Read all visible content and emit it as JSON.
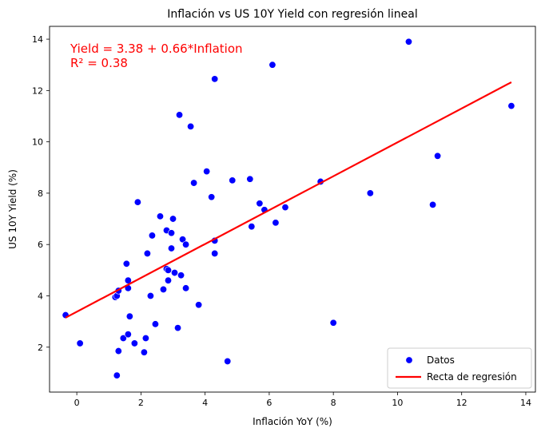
{
  "chart_data": {
    "type": "scatter",
    "title": "Inflación vs US 10Y Yield con regresión lineal",
    "xlabel": "Inflación YoY (%)",
    "ylabel": "US 10Y Yield (%)",
    "xlim": [
      -0.85,
      14.3
    ],
    "ylim": [
      0.25,
      14.5
    ],
    "x_ticks": [
      0,
      2,
      4,
      6,
      8,
      10,
      12,
      14
    ],
    "y_ticks": [
      2,
      4,
      6,
      8,
      10,
      12,
      14
    ],
    "grid": false,
    "annotation": {
      "line1": "Yield = 3.38 + 0.66*Inflation",
      "line2": "R² = 0.38",
      "color": "#ff0000"
    },
    "legend": {
      "placement": "bottom-right",
      "entries": [
        {
          "label": "Datos",
          "kind": "marker",
          "color": "#0000ff"
        },
        {
          "label": "Recta de regresión",
          "kind": "line",
          "color": "#ff0000"
        }
      ]
    },
    "series": [
      {
        "name": "Datos",
        "color": "#0000ff",
        "points": [
          [
            -0.35,
            3.25
          ],
          [
            0.1,
            2.15
          ],
          [
            1.2,
            3.95
          ],
          [
            1.25,
            4.0
          ],
          [
            1.3,
            4.2
          ],
          [
            1.25,
            0.9
          ],
          [
            1.3,
            1.85
          ],
          [
            1.45,
            2.35
          ],
          [
            1.6,
            2.5
          ],
          [
            1.65,
            3.2
          ],
          [
            1.55,
            5.25
          ],
          [
            1.6,
            4.6
          ],
          [
            1.6,
            4.3
          ],
          [
            1.8,
            2.15
          ],
          [
            1.9,
            7.65
          ],
          [
            2.1,
            1.8
          ],
          [
            2.15,
            2.35
          ],
          [
            2.2,
            5.65
          ],
          [
            2.3,
            4.0
          ],
          [
            2.35,
            6.35
          ],
          [
            2.45,
            2.9
          ],
          [
            2.6,
            7.1
          ],
          [
            2.7,
            4.25
          ],
          [
            2.8,
            6.55
          ],
          [
            2.8,
            5.05
          ],
          [
            2.85,
            5.0
          ],
          [
            2.85,
            4.6
          ],
          [
            2.95,
            6.45
          ],
          [
            2.95,
            5.85
          ],
          [
            3.0,
            7.0
          ],
          [
            3.05,
            4.9
          ],
          [
            3.15,
            2.75
          ],
          [
            3.2,
            11.05
          ],
          [
            3.25,
            4.8
          ],
          [
            3.3,
            6.2
          ],
          [
            3.4,
            6.0
          ],
          [
            3.4,
            4.3
          ],
          [
            3.55,
            10.6
          ],
          [
            3.65,
            8.4
          ],
          [
            3.8,
            3.65
          ],
          [
            4.05,
            8.85
          ],
          [
            4.2,
            7.85
          ],
          [
            4.3,
            12.45
          ],
          [
            4.3,
            6.15
          ],
          [
            4.3,
            5.65
          ],
          [
            4.7,
            1.45
          ],
          [
            4.85,
            8.5
          ],
          [
            5.4,
            8.55
          ],
          [
            5.45,
            6.7
          ],
          [
            5.7,
            7.6
          ],
          [
            5.85,
            7.35
          ],
          [
            6.1,
            13.0
          ],
          [
            6.2,
            6.85
          ],
          [
            6.5,
            7.45
          ],
          [
            7.6,
            8.45
          ],
          [
            8.0,
            2.95
          ],
          [
            9.15,
            8.0
          ],
          [
            10.35,
            13.9
          ],
          [
            11.1,
            7.55
          ],
          [
            11.25,
            9.45
          ],
          [
            13.55,
            11.4
          ]
        ]
      }
    ],
    "regression": {
      "name": "Recta de regresión",
      "color": "#ff0000",
      "intercept": 3.38,
      "slope": 0.66,
      "x_range": [
        -0.35,
        13.55
      ]
    }
  }
}
